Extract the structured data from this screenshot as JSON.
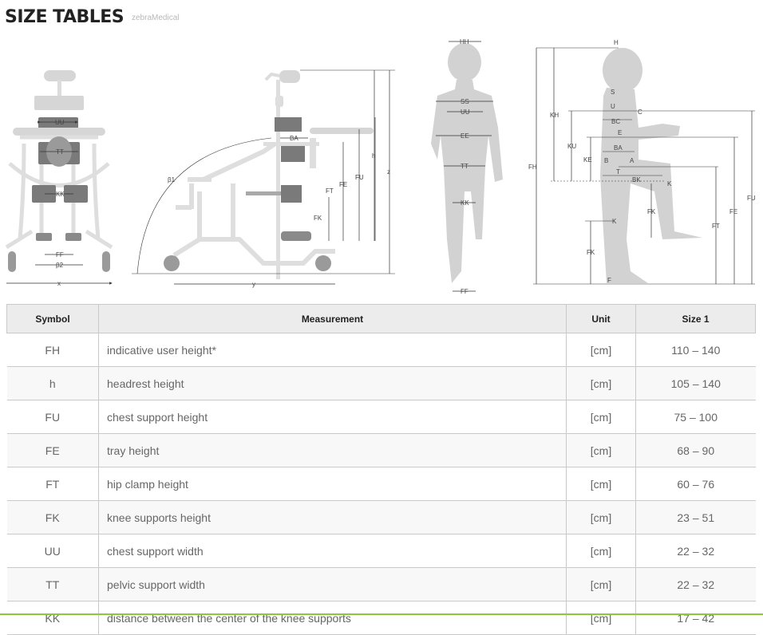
{
  "page": {
    "title": "SIZE TABLES",
    "logo_text": "zebraMedical"
  },
  "diagram": {
    "front_chair": [
      "UU",
      "TT",
      "KK",
      "FF",
      "β2",
      "x"
    ],
    "side_chair": [
      "BA",
      "β1",
      "h",
      "z",
      "FU",
      "FE",
      "FT",
      "FK",
      "y"
    ],
    "front_child": [
      "HH",
      "SS",
      "UU",
      "EE",
      "TT",
      "KK",
      "FF"
    ],
    "side_child": [
      "H",
      "KH",
      "FH",
      "S",
      "U",
      "C",
      "BC",
      "KU",
      "E",
      "KE",
      "BA",
      "B",
      "A",
      "T",
      "BK",
      "K",
      "FK",
      "K",
      "FK",
      "F",
      "FT",
      "FE",
      "FU"
    ]
  },
  "table": {
    "headers": [
      "Symbol",
      "Measurement",
      "Unit",
      "Size 1"
    ],
    "rows": [
      {
        "symbol": "FH",
        "measurement": "indicative user height*",
        "unit": "[cm]",
        "size1": "110 – 140"
      },
      {
        "symbol": "h",
        "measurement": "headrest height",
        "unit": "[cm]",
        "size1": "105 – 140"
      },
      {
        "symbol": "FU",
        "measurement": "chest support height",
        "unit": "[cm]",
        "size1": "75 – 100"
      },
      {
        "symbol": "FE",
        "measurement": "tray height",
        "unit": "[cm]",
        "size1": "68 – 90"
      },
      {
        "symbol": "FT",
        "measurement": "hip clamp height",
        "unit": "[cm]",
        "size1": "60 – 76"
      },
      {
        "symbol": "FK",
        "measurement": "knee supports height",
        "unit": "[cm]",
        "size1": "23 – 51"
      },
      {
        "symbol": "UU",
        "measurement": "chest support width",
        "unit": "[cm]",
        "size1": "22 – 32"
      },
      {
        "symbol": "TT",
        "measurement": "pelvic support width",
        "unit": "[cm]",
        "size1": "22 – 32"
      },
      {
        "symbol": "KK",
        "measurement": "distance between the center of the knee supports",
        "unit": "[cm]",
        "size1": "17 – 42"
      }
    ]
  },
  "colors": {
    "accent_line": "#8dc63f",
    "header_bg": "#ececec",
    "diagram_light": "#d9d9d9",
    "diagram_dark": "#7a7a7a"
  }
}
